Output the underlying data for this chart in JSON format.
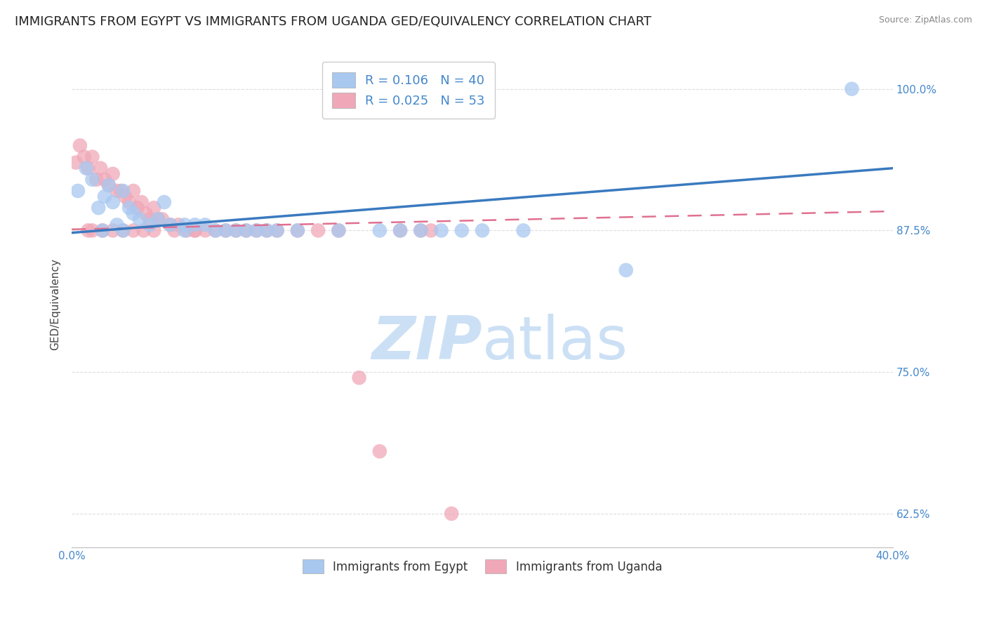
{
  "title": "IMMIGRANTS FROM EGYPT VS IMMIGRANTS FROM UGANDA GED/EQUIVALENCY CORRELATION CHART",
  "source": "Source: ZipAtlas.com",
  "ylabel": "GED/Equivalency",
  "xlim": [
    0.0,
    0.4
  ],
  "ylim": [
    0.595,
    1.025
  ],
  "ytick_vals": [
    0.625,
    0.75,
    0.875,
    1.0
  ],
  "ytick_labels": [
    "62.5%",
    "75.0%",
    "87.5%",
    "100.0%"
  ],
  "xtick_vals": [
    0.0,
    0.05,
    0.1,
    0.15,
    0.2,
    0.25,
    0.3,
    0.35,
    0.4
  ],
  "xtick_labels": [
    "0.0%",
    "",
    "",
    "",
    "",
    "",
    "",
    "",
    "40.0%"
  ],
  "R_egypt": 0.106,
  "N_egypt": 40,
  "R_uganda": 0.025,
  "N_uganda": 53,
  "egypt_color": "#a8c8f0",
  "uganda_color": "#f0a8b8",
  "egypt_line_color": "#3a7abf",
  "uganda_line_color": "#e07090",
  "background_color": "#ffffff",
  "grid_color": "#dddddd",
  "title_fontsize": 13,
  "axis_fontsize": 11,
  "legend_fontsize": 12,
  "tick_color": "#4488cc",
  "watermark_color": "#cce0f5",
  "egypt_x": [
    0.003,
    0.007,
    0.01,
    0.013,
    0.016,
    0.018,
    0.02,
    0.022,
    0.025,
    0.028,
    0.03,
    0.033,
    0.038,
    0.042,
    0.048,
    0.055,
    0.06,
    0.065,
    0.07,
    0.075,
    0.08,
    0.085,
    0.09,
    0.095,
    0.1,
    0.11,
    0.13,
    0.15,
    0.16,
    0.17,
    0.18,
    0.19,
    0.2,
    0.22,
    0.27,
    0.38,
    0.045,
    0.055,
    0.015,
    0.025
  ],
  "egypt_y": [
    0.91,
    0.93,
    0.92,
    0.895,
    0.905,
    0.915,
    0.9,
    0.88,
    0.91,
    0.895,
    0.89,
    0.885,
    0.88,
    0.885,
    0.88,
    0.88,
    0.88,
    0.88,
    0.875,
    0.875,
    0.875,
    0.875,
    0.875,
    0.875,
    0.875,
    0.875,
    0.875,
    0.875,
    0.875,
    0.875,
    0.875,
    0.875,
    0.875,
    0.875,
    0.84,
    1.0,
    0.9,
    0.875,
    0.875,
    0.875
  ],
  "uganda_x": [
    0.002,
    0.004,
    0.006,
    0.008,
    0.01,
    0.012,
    0.014,
    0.016,
    0.018,
    0.02,
    0.022,
    0.024,
    0.026,
    0.028,
    0.03,
    0.032,
    0.034,
    0.036,
    0.038,
    0.04,
    0.042,
    0.044,
    0.048,
    0.052,
    0.056,
    0.06,
    0.065,
    0.07,
    0.075,
    0.08,
    0.085,
    0.09,
    0.095,
    0.1,
    0.11,
    0.12,
    0.13,
    0.14,
    0.15,
    0.16,
    0.17,
    0.01,
    0.02,
    0.03,
    0.04,
    0.05,
    0.06,
    0.008,
    0.015,
    0.025,
    0.035,
    0.175,
    0.185
  ],
  "uganda_y": [
    0.935,
    0.95,
    0.94,
    0.93,
    0.94,
    0.92,
    0.93,
    0.92,
    0.915,
    0.925,
    0.91,
    0.91,
    0.905,
    0.9,
    0.91,
    0.895,
    0.9,
    0.89,
    0.885,
    0.895,
    0.885,
    0.885,
    0.88,
    0.88,
    0.875,
    0.875,
    0.875,
    0.875,
    0.875,
    0.875,
    0.875,
    0.875,
    0.875,
    0.875,
    0.875,
    0.875,
    0.875,
    0.745,
    0.68,
    0.875,
    0.875,
    0.875,
    0.875,
    0.875,
    0.875,
    0.875,
    0.875,
    0.875,
    0.875,
    0.875,
    0.875,
    0.875,
    0.625
  ]
}
